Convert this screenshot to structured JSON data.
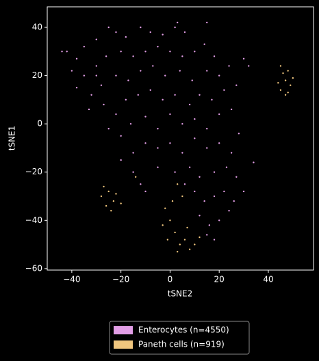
{
  "chart_data": {
    "type": "scatter",
    "xlabel": "tSNE2",
    "ylabel": "tSNE1",
    "xlim": [
      -50,
      58.4
    ],
    "ylim": [
      -60.6,
      48.5
    ],
    "xticks": [
      {
        "value": -40,
        "label": "−40"
      },
      {
        "value": -20,
        "label": "−20"
      },
      0,
      20,
      40
    ],
    "yticks": [
      {
        "value": -60,
        "label": "−60"
      },
      {
        "value": -40,
        "label": "−40"
      },
      {
        "value": -20,
        "label": "−20"
      },
      0,
      20,
      40
    ],
    "legend": "below",
    "series": [
      {
        "name": "Enterocytes (n=4550)",
        "color": "#e29ee6",
        "x": [
          -42,
          -38,
          -35,
          -30,
          -25,
          -22,
          -18,
          -12,
          -8,
          -3,
          2,
          6,
          -40,
          -35,
          -30,
          -26,
          -20,
          -15,
          -10,
          -5,
          0,
          5,
          10,
          14,
          18,
          -38,
          -32,
          -28,
          -22,
          -17,
          -12,
          -7,
          -2,
          4,
          9,
          15,
          20,
          24,
          -33,
          -27,
          -22,
          -18,
          -13,
          -8,
          -3,
          2,
          8,
          12,
          17,
          22,
          27,
          -25,
          -20,
          -16,
          -10,
          -5,
          0,
          5,
          10,
          15,
          20,
          25,
          -20,
          -15,
          -10,
          -5,
          0,
          5,
          10,
          15,
          20,
          25,
          28,
          -15,
          -12,
          -10,
          -5,
          2,
          8,
          12,
          18,
          23,
          27,
          30,
          10,
          14,
          18,
          22,
          26,
          12,
          16,
          20,
          24,
          15,
          18,
          6,
          34,
          -44,
          32,
          30,
          -30,
          15,
          3
        ],
        "values": [
          30,
          27,
          32,
          35,
          40,
          38,
          36,
          40,
          38,
          37,
          40,
          38,
          22,
          20,
          24,
          28,
          30,
          28,
          30,
          32,
          30,
          28,
          30,
          33,
          28,
          15,
          12,
          16,
          20,
          18,
          22,
          24,
          20,
          22,
          18,
          22,
          20,
          24,
          6,
          8,
          4,
          10,
          12,
          14,
          10,
          12,
          8,
          12,
          10,
          14,
          16,
          -2,
          -5,
          0,
          3,
          -2,
          4,
          0,
          2,
          -2,
          4,
          6,
          -15,
          -12,
          -8,
          -10,
          -8,
          -12,
          -6,
          -10,
          -8,
          -12,
          -4,
          -20,
          -25,
          -28,
          -18,
          -20,
          -18,
          -22,
          -20,
          -18,
          -22,
          -28,
          -28,
          -32,
          -30,
          -28,
          -32,
          -38,
          -42,
          -40,
          -36,
          -46,
          -48,
          -25,
          -16,
          30,
          24,
          27,
          20,
          42,
          42
        ]
      },
      {
        "name": "Paneth cells (n=919)",
        "color": "#f0c67e",
        "x": [
          45,
          47,
          49,
          46,
          48,
          44,
          50,
          47,
          45,
          48,
          -28,
          -25,
          -23,
          -26,
          -22,
          -27,
          -24,
          -20,
          -2,
          0,
          2,
          4,
          6,
          8,
          10,
          -1,
          3,
          12,
          1,
          5,
          -3,
          7,
          -14,
          3
        ],
        "values": [
          14,
          18,
          16,
          21,
          22,
          17,
          19,
          12,
          24,
          13,
          -30,
          -28,
          -32,
          -34,
          -29,
          -26,
          -36,
          -33,
          -35,
          -40,
          -45,
          -50,
          -48,
          -52,
          -50,
          -48,
          -53,
          -47,
          -32,
          -30,
          -42,
          -43,
          -22,
          -25
        ]
      }
    ]
  }
}
